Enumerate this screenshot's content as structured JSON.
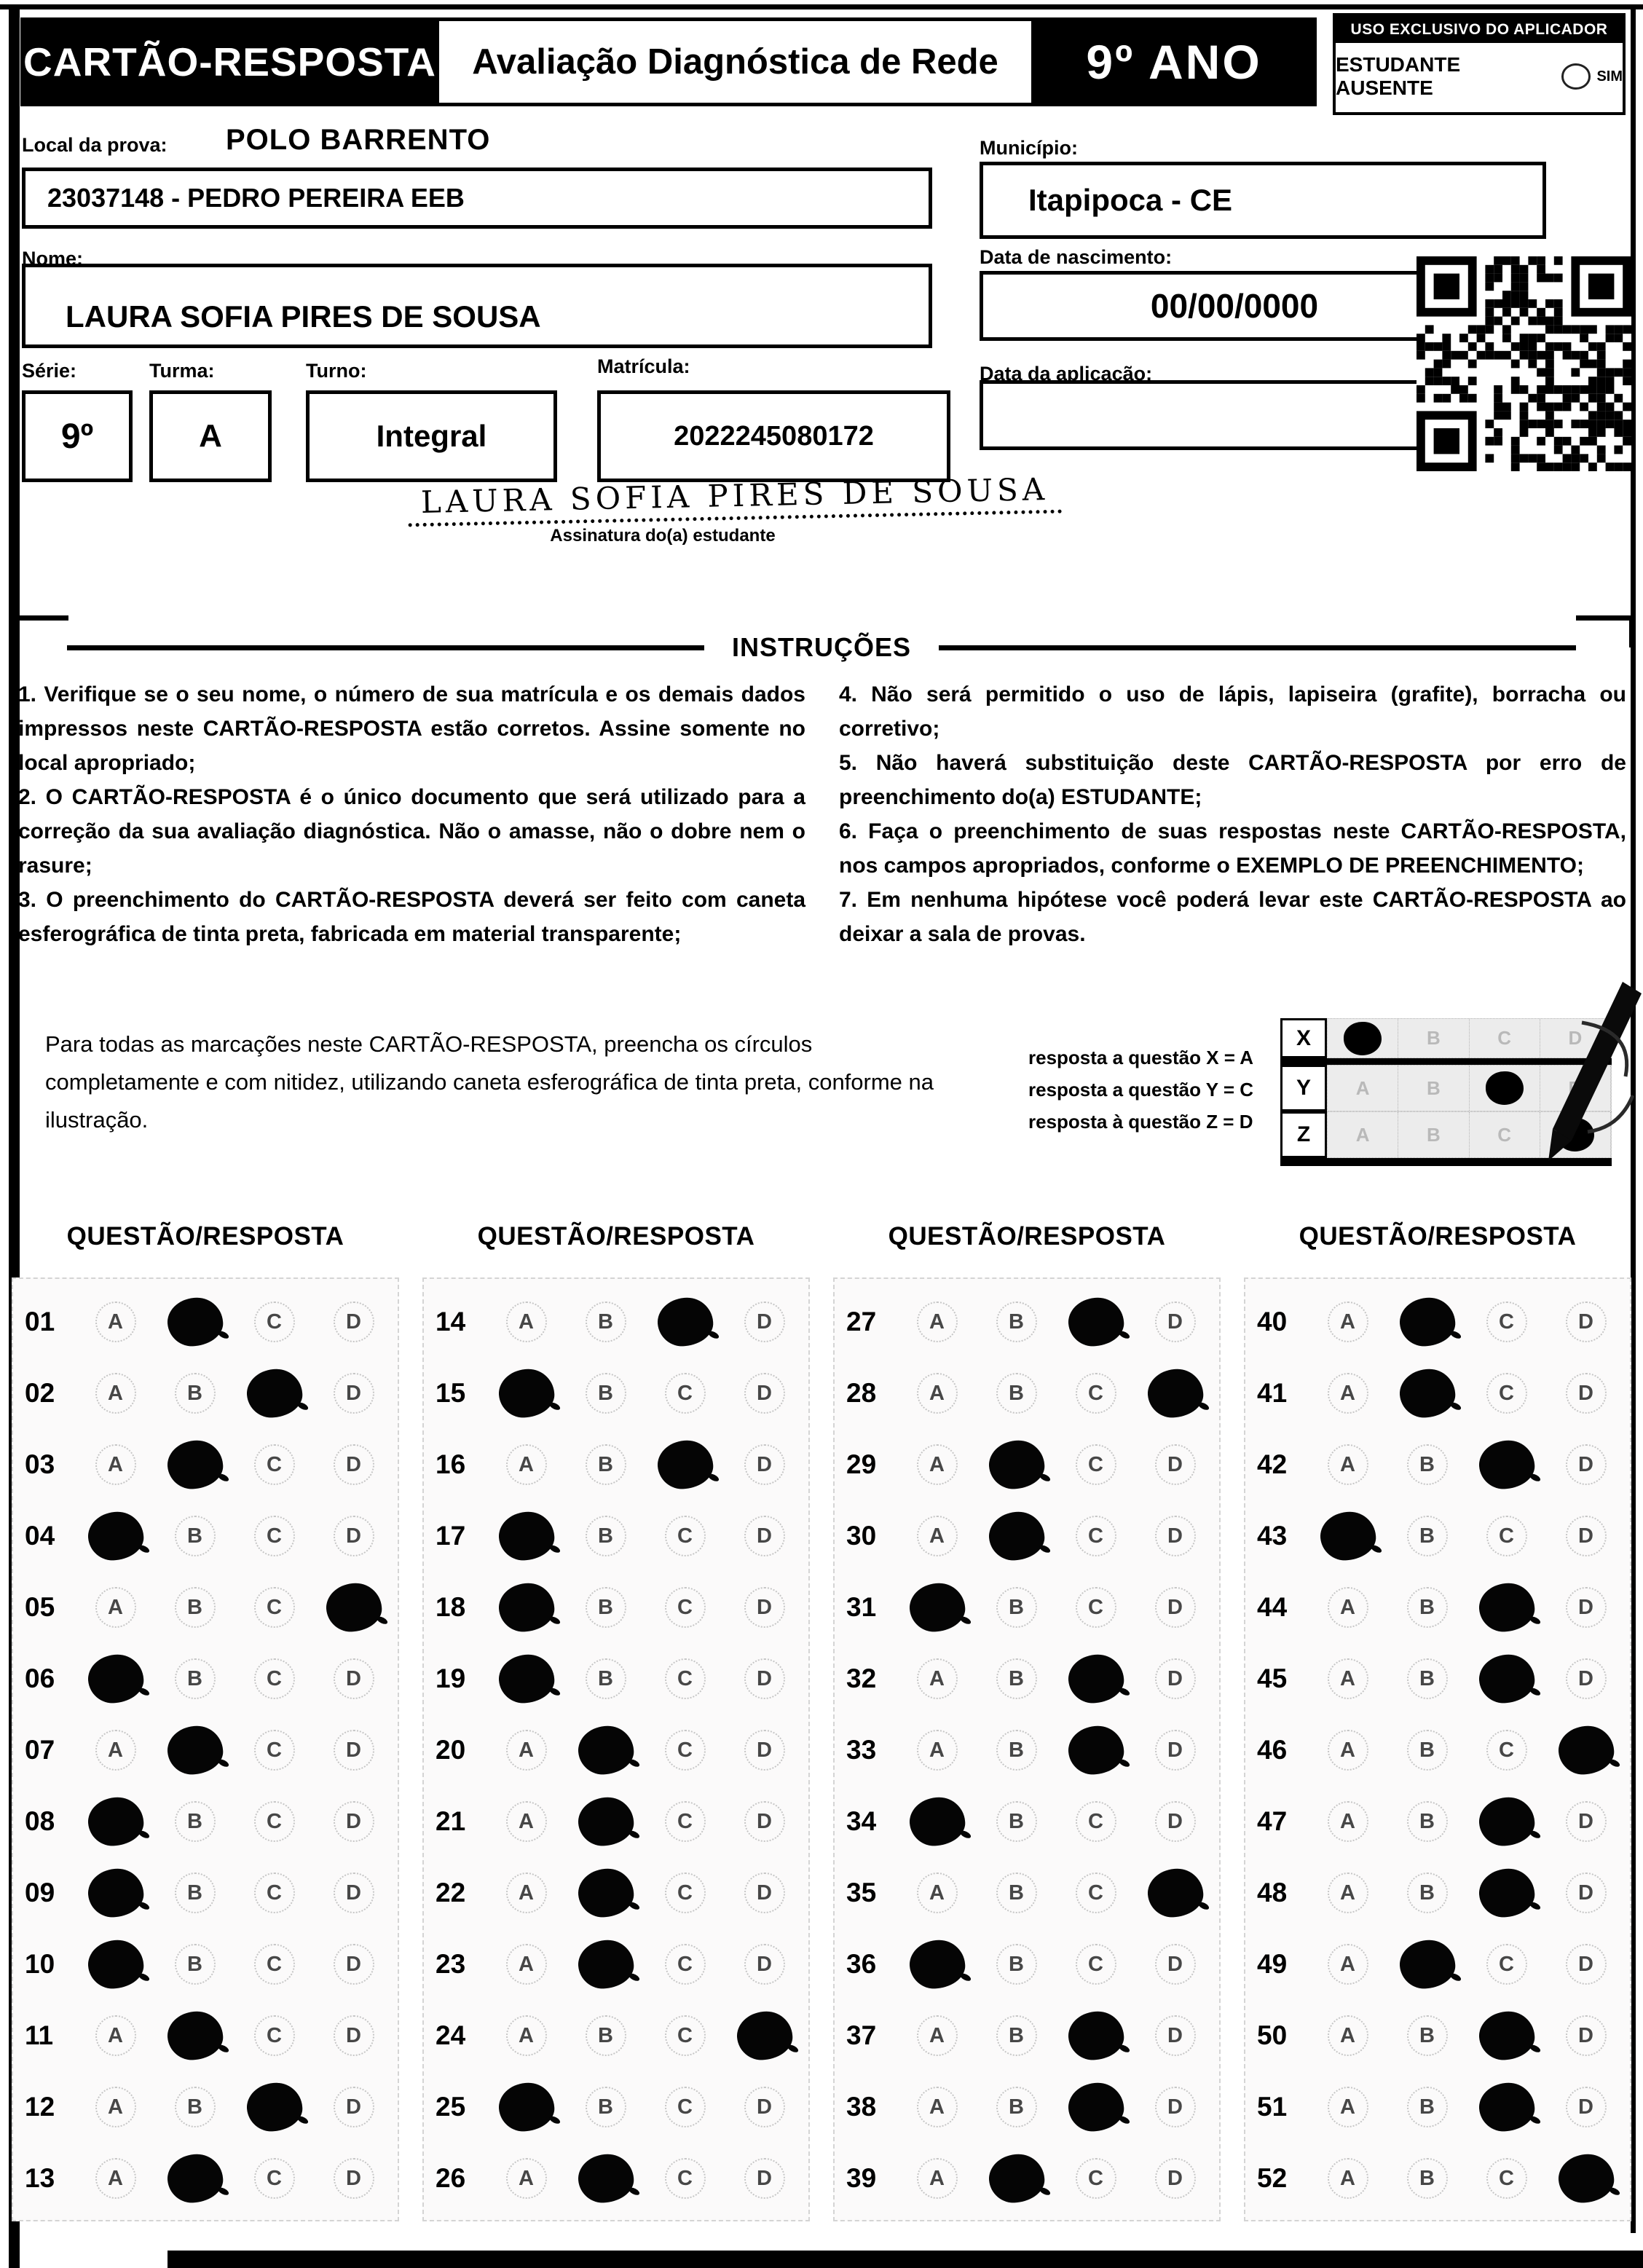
{
  "colors": {
    "ink": "#000000",
    "paper": "#ffffff"
  },
  "header": {
    "card_title": "CARTÃO-RESPOSTA",
    "exam_title": "Avaliação Diagnóstica de Rede",
    "grade": "9º ANO",
    "applicator_title": "USO EXCLUSIVO DO APLICADOR",
    "absent_label": "ESTUDANTE AUSENTE",
    "absent_option": "SIM"
  },
  "form": {
    "local_label": "Local da prova:",
    "local_value": "POLO BARRENTO",
    "school_value": "23037148 - PEDRO PEREIRA EEB",
    "municipio_label": "Município:",
    "municipio_value": "Itapipoca - CE",
    "nome_label": "Nome:",
    "nome_value": "LAURA SOFIA PIRES DE SOUSA",
    "nascimento_label": "Data de nascimento:",
    "nascimento_value": "00/00/0000",
    "serie_label": "Série:",
    "serie_value": "9º",
    "turma_label": "Turma:",
    "turma_value": "A",
    "turno_label": "Turno:",
    "turno_value": "Integral",
    "matricula_label": "Matrícula:",
    "matricula_value": "2022245080172",
    "aplicacao_label": "Data da aplicação:",
    "aplicacao_value": ""
  },
  "signature": {
    "value": "LAURA SOFIA PIRES DE SOUSA",
    "caption": "Assinatura do(a) estudante"
  },
  "instructions": {
    "title": "INSTRUÇÕES",
    "left": [
      "1. Verifique se o seu nome, o número de sua matrícula e os demais dados impressos neste CARTÃO-RESPOSTA estão corretos. Assine somente no local apropriado;",
      "2. O CARTÃO-RESPOSTA é o único documento que será utilizado para a correção da sua avaliação diagnóstica. Não o amasse, não o dobre nem o rasure;",
      "3. O preenchimento do CARTÃO-RESPOSTA deverá ser feito com caneta esferográfica de tinta preta, fabricada em material transparente;"
    ],
    "right": [
      "4. Não será permitido o uso de lápis, lapiseira (grafite), borracha ou corretivo;",
      "5. Não haverá substituição deste CARTÃO-RESPOSTA por erro de preenchimento do(a) ESTUDANTE;",
      "6. Faça o preenchimento de suas respostas neste CARTÃO-RESPOSTA, nos campos apropriados, conforme o EXEMPLO DE PREENCHIMENTO;",
      "7. Em nenhuma hipótese você poderá levar este CARTÃO-RESPOSTA ao deixar a sala de provas."
    ]
  },
  "example": {
    "text": "Para todas as marcações neste CARTÃO-RESPOSTA, preencha os círculos completamente e com nitidez, utilizando caneta esferográfica de tinta preta, conforme na ilustração.",
    "legend": [
      "resposta a questão X = A",
      "resposta a questão Y = C",
      "resposta à questão Z = D"
    ],
    "options": [
      "A",
      "B",
      "C",
      "D"
    ],
    "rows": [
      {
        "label": "X",
        "answer": "A"
      },
      {
        "label": "Y",
        "answer": "C"
      },
      {
        "label": "Z",
        "answer": "D"
      }
    ]
  },
  "answers": {
    "column_header": "QUESTÃO/RESPOSTA",
    "options": [
      "A",
      "B",
      "C",
      "D"
    ],
    "columns": [
      [
        {
          "q": "01",
          "a": "B"
        },
        {
          "q": "02",
          "a": "C"
        },
        {
          "q": "03",
          "a": "B"
        },
        {
          "q": "04",
          "a": "A"
        },
        {
          "q": "05",
          "a": "D"
        },
        {
          "q": "06",
          "a": "A"
        },
        {
          "q": "07",
          "a": "B"
        },
        {
          "q": "08",
          "a": "A"
        },
        {
          "q": "09",
          "a": "A"
        },
        {
          "q": "10",
          "a": "A"
        },
        {
          "q": "11",
          "a": "B"
        },
        {
          "q": "12",
          "a": "C"
        },
        {
          "q": "13",
          "a": "B"
        }
      ],
      [
        {
          "q": "14",
          "a": "C"
        },
        {
          "q": "15",
          "a": "A"
        },
        {
          "q": "16",
          "a": "C"
        },
        {
          "q": "17",
          "a": "A"
        },
        {
          "q": "18",
          "a": "A"
        },
        {
          "q": "19",
          "a": "A"
        },
        {
          "q": "20",
          "a": "B"
        },
        {
          "q": "21",
          "a": "B"
        },
        {
          "q": "22",
          "a": "B"
        },
        {
          "q": "23",
          "a": "B"
        },
        {
          "q": "24",
          "a": "D"
        },
        {
          "q": "25",
          "a": "A"
        },
        {
          "q": "26",
          "a": "B"
        }
      ],
      [
        {
          "q": "27",
          "a": "C"
        },
        {
          "q": "28",
          "a": "D"
        },
        {
          "q": "29",
          "a": "B"
        },
        {
          "q": "30",
          "a": "B"
        },
        {
          "q": "31",
          "a": "A"
        },
        {
          "q": "32",
          "a": "C"
        },
        {
          "q": "33",
          "a": "C"
        },
        {
          "q": "34",
          "a": "A"
        },
        {
          "q": "35",
          "a": "D"
        },
        {
          "q": "36",
          "a": "A"
        },
        {
          "q": "37",
          "a": "C"
        },
        {
          "q": "38",
          "a": "C"
        },
        {
          "q": "39",
          "a": "B"
        }
      ],
      [
        {
          "q": "40",
          "a": "B"
        },
        {
          "q": "41",
          "a": "B"
        },
        {
          "q": "42",
          "a": "C"
        },
        {
          "q": "43",
          "a": "A"
        },
        {
          "q": "44",
          "a": "C"
        },
        {
          "q": "45",
          "a": "C"
        },
        {
          "q": "46",
          "a": "D"
        },
        {
          "q": "47",
          "a": "C"
        },
        {
          "q": "48",
          "a": "C"
        },
        {
          "q": "49",
          "a": "B"
        },
        {
          "q": "50",
          "a": "C"
        },
        {
          "q": "51",
          "a": "C"
        },
        {
          "q": "52",
          "a": "D"
        }
      ]
    ]
  }
}
